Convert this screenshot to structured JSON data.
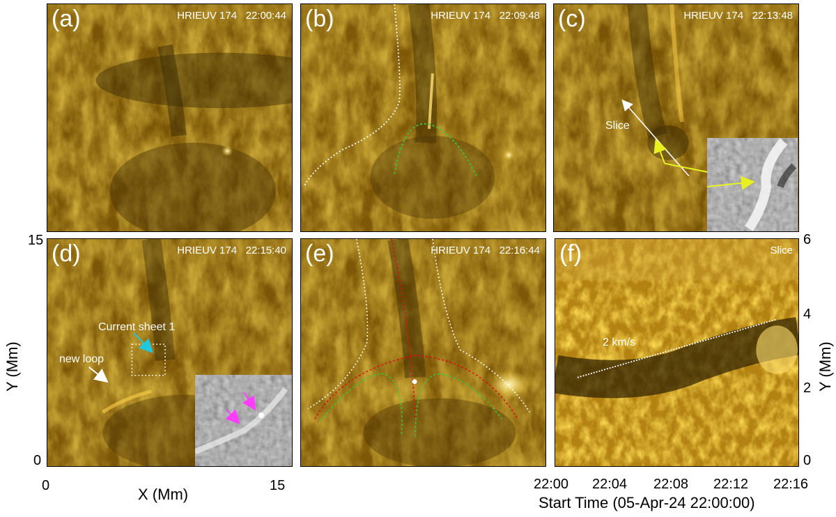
{
  "figure": {
    "panels": [
      {
        "label": "(a)",
        "instrument": "HRIEUV 174",
        "time": "22:00:44"
      },
      {
        "label": "(b)",
        "instrument": "HRIEUV 174",
        "time": "22:09:48"
      },
      {
        "label": "(c)",
        "instrument": "HRIEUV 174",
        "time": "22:13:48"
      },
      {
        "label": "(d)",
        "instrument": "HRIEUV 174",
        "time": "22:15:40"
      },
      {
        "label": "(e)",
        "instrument": "HRIEUV 174",
        "time": "22:16:44"
      },
      {
        "label": "(f)",
        "title": "Slice"
      }
    ],
    "annotations": {
      "slice": "Slice",
      "current_sheet": "Current sheet 1",
      "new_loop": "new loop",
      "speed": "2 km/s"
    },
    "axes": {
      "x_label": "X (Mm)",
      "y_label": "Y (Mm)",
      "x_ticks": [
        "0",
        "15"
      ],
      "y_ticks": [
        "0",
        "15"
      ],
      "f_y_label": "Y (Mm)",
      "f_y_ticks": [
        "0",
        "2",
        "4",
        "6"
      ],
      "f_x_ticks": [
        "22:00",
        "22:04",
        "22:08",
        "22:12",
        "22:16"
      ],
      "f_x_label": "Start Time (05-Apr-24 22:00:00)"
    },
    "colors": {
      "euv_dark": "#3a2a04",
      "euv_mid": "#b07d10",
      "euv_bright": "#ffd23a",
      "white_guide": "#ffffff",
      "green_guide": "#2ecc40",
      "red_guide": "#e01010",
      "cyan_arrow": "#1ec8e0",
      "yellow_arrow": "#e8f020",
      "magenta_arrow": "#ff3cff"
    }
  }
}
